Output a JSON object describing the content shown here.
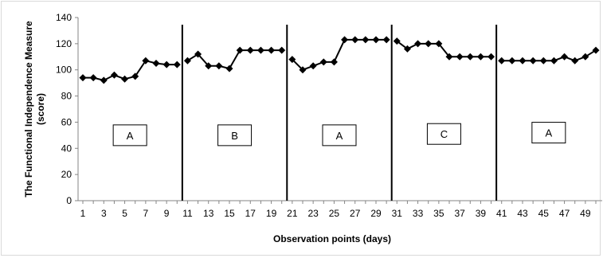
{
  "chart_data": {
    "type": "line",
    "title": "",
    "xlabel": "Observation points (days)",
    "ylabel": "The Functional Independence Measure (score)",
    "ylabel_lines": [
      "The Functional Independence Measure",
      "(score)"
    ],
    "xlim": [
      1,
      50
    ],
    "ylim": [
      0,
      140
    ],
    "yticks": [
      0,
      20,
      40,
      60,
      80,
      100,
      120,
      140
    ],
    "xticks": [
      1,
      3,
      5,
      7,
      9,
      11,
      13,
      15,
      17,
      19,
      21,
      23,
      25,
      27,
      29,
      31,
      33,
      35,
      37,
      39,
      41,
      43,
      45,
      47,
      49
    ],
    "grid": false,
    "legend": "none",
    "line_color": "#000000",
    "marker": "diamond",
    "phase_dividers": [
      10.5,
      20.5,
      30.5,
      40.5
    ],
    "phases": [
      {
        "label": "A",
        "x_start": 1,
        "x_end": 10,
        "label_y": 50
      },
      {
        "label": "B",
        "x_start": 11,
        "x_end": 20,
        "label_y": 50
      },
      {
        "label": "A",
        "x_start": 21,
        "x_end": 30,
        "label_y": 50
      },
      {
        "label": "C",
        "x_start": 31,
        "x_end": 40,
        "label_y": 51
      },
      {
        "label": "A",
        "x_start": 41,
        "x_end": 50,
        "label_y": 52
      }
    ],
    "series": [
      {
        "phase": 0,
        "x": [
          1,
          2,
          3,
          4,
          5,
          6,
          7,
          8,
          9,
          10
        ],
        "values": [
          94,
          94,
          92,
          96,
          93,
          95,
          107,
          105,
          104,
          104
        ]
      },
      {
        "phase": 1,
        "x": [
          11,
          12,
          13,
          14,
          15,
          16,
          17,
          18,
          19,
          20
        ],
        "values": [
          107,
          112,
          103,
          103,
          101,
          115,
          115,
          115,
          115,
          115
        ]
      },
      {
        "phase": 2,
        "x": [
          21,
          22,
          23,
          24,
          25,
          26,
          27,
          28,
          29,
          30
        ],
        "values": [
          108,
          100,
          103,
          106,
          106,
          123,
          123,
          123,
          123,
          123
        ]
      },
      {
        "phase": 3,
        "x": [
          31,
          32,
          33,
          34,
          35,
          36,
          37,
          38,
          39,
          40
        ],
        "values": [
          122,
          116,
          120,
          120,
          120,
          110,
          110,
          110,
          110,
          110
        ]
      },
      {
        "phase": 4,
        "x": [
          41,
          42,
          43,
          44,
          45,
          46,
          47,
          48,
          49,
          50
        ],
        "values": [
          107,
          107,
          107,
          107,
          107,
          107,
          110,
          107,
          110,
          115
        ]
      }
    ]
  }
}
